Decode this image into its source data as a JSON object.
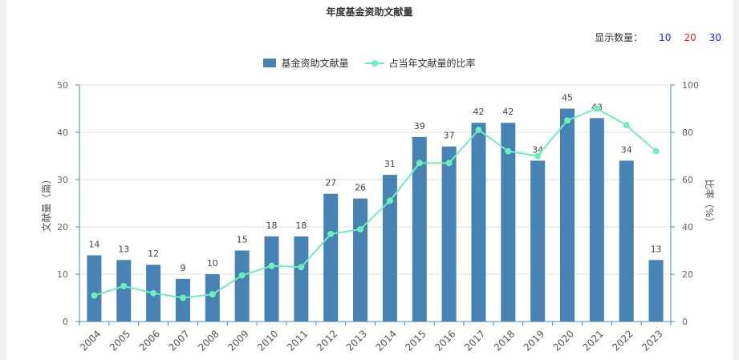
{
  "colors": {
    "bar": "#4682b4",
    "line": "#6eeeb8",
    "axis": "#3c8fc3",
    "grid": "#e0e0e0",
    "option_10": "#1a1aff",
    "option_20": "#e02020",
    "option_30": "#1a1aff"
  },
  "controls": {
    "display_count_label": "显示数量：",
    "options": [
      "10",
      "20",
      "30"
    ]
  },
  "chart_data": {
    "type": "bar",
    "title": "年度基金资助文献量",
    "categories": [
      "2004",
      "2005",
      "2006",
      "2007",
      "2008",
      "2009",
      "2010",
      "2011",
      "2012",
      "2013",
      "2014",
      "2015",
      "2016",
      "2017",
      "2018",
      "2019",
      "2020",
      "2021",
      "2022",
      "2023"
    ],
    "series": [
      {
        "name": "基金资助文献量",
        "type": "bar",
        "axis": "left",
        "values": [
          14,
          13,
          12,
          9,
          10,
          15,
          18,
          18,
          27,
          26,
          31,
          39,
          37,
          42,
          42,
          34,
          45,
          43,
          34,
          13
        ]
      },
      {
        "name": "占当年文献量的比率",
        "type": "line",
        "axis": "right",
        "values": [
          11,
          15,
          12,
          10,
          11.5,
          19.5,
          23.5,
          23,
          37,
          39,
          51,
          67,
          67,
          81,
          72,
          70,
          85,
          90,
          83,
          72
        ]
      }
    ],
    "ylabel": "文献量（篇）",
    "y2label": "比率（%）",
    "ylim": [
      0,
      50
    ],
    "y2lim": [
      0,
      100
    ],
    "yticks": [
      0,
      10,
      20,
      30,
      40,
      50
    ],
    "y2ticks": [
      0,
      20,
      40,
      60,
      80,
      100
    ],
    "grid": true,
    "legend_position": "top-center",
    "data_labels": true
  }
}
